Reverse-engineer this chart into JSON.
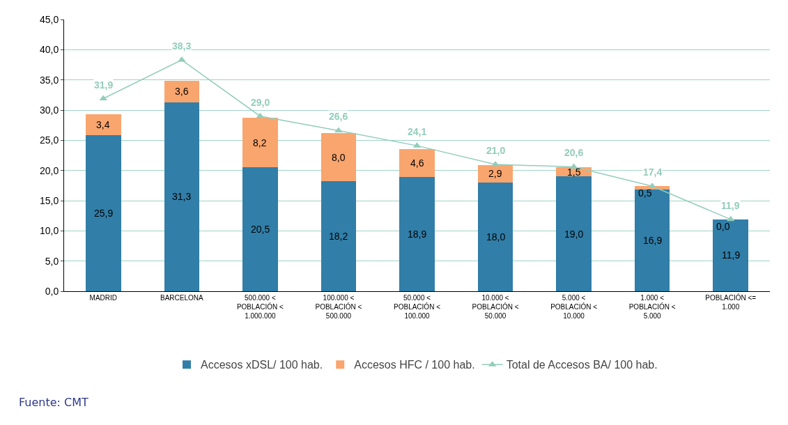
{
  "chart_data": {
    "type": "bar",
    "stacked": true,
    "categories": [
      "MADRID",
      "BARCELONA",
      "500.000 <\nPOBLACIÓN <\n1.000.000",
      "100.000 <\nPOBLACIÓN <\n500.000",
      "50.000 <\nPOBLACIÓN <\n100.000",
      "10.000 <\nPOBLACIÓN <\n50.000",
      "5.000 <\nPOBLACIÓN <\n10.000",
      "1.000 <\nPOBLACIÓN <\n5.000",
      "POBLACIÓN <=\n1.000"
    ],
    "series": [
      {
        "name": "Accesos xDSL/ 100 hab.",
        "color": "#317ea8",
        "values": [
          25.9,
          31.3,
          20.5,
          18.2,
          18.9,
          18.0,
          19.0,
          16.9,
          11.9
        ],
        "value_labels": [
          "25,9",
          "31,3",
          "20,5",
          "18,2",
          "18,9",
          "18,0",
          "19,0",
          "16,9",
          "11,9"
        ]
      },
      {
        "name": "Accesos HFC / 100 hab.",
        "color": "#f9a56e",
        "values": [
          3.4,
          3.6,
          8.2,
          8.0,
          4.6,
          2.9,
          1.5,
          0.5,
          0.0
        ],
        "value_labels": [
          "3,4",
          "3,6",
          "8,2",
          "8,0",
          "4,6",
          "2,9",
          "1,5",
          "0,5",
          "0,0"
        ]
      },
      {
        "name": "Total de Accesos BA/ 100 hab.",
        "type": "line",
        "color": "#93cdbb",
        "marker": "triangle",
        "values": [
          31.9,
          38.3,
          29.0,
          26.6,
          24.1,
          21.0,
          20.6,
          17.4,
          11.9
        ],
        "value_labels": [
          "31,9",
          "38,3",
          "29,0",
          "26,6",
          "24,1",
          "21,0",
          "20,6",
          "17,4",
          "11,9"
        ]
      }
    ],
    "ylim": [
      0,
      45
    ],
    "yticks": [
      {
        "value": 0,
        "label": "0,0"
      },
      {
        "value": 5,
        "label": "5,0"
      },
      {
        "value": 10,
        "label": "10,0"
      },
      {
        "value": 15,
        "label": "15,0"
      },
      {
        "value": 20,
        "label": "20,0"
      },
      {
        "value": 25,
        "label": "25,0"
      },
      {
        "value": 30,
        "label": "30,0"
      },
      {
        "value": 35,
        "label": "35,0"
      },
      {
        "value": 40,
        "label": "40,0"
      },
      {
        "value": 45,
        "label": "45,0"
      }
    ],
    "grid": "y",
    "legend": "bottom",
    "annotations": [
      "Fuente: CMT"
    ]
  }
}
